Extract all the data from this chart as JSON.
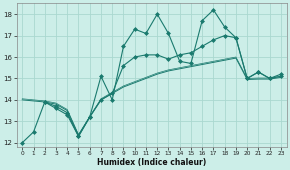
{
  "xlabel": "Humidex (Indice chaleur)",
  "bg_color": "#cceee8",
  "grid_color": "#aad8d0",
  "line_color": "#1a7a6e",
  "xlim": [
    -0.5,
    23.5
  ],
  "ylim": [
    11.8,
    18.5
  ],
  "yticks": [
    12,
    13,
    14,
    15,
    16,
    17,
    18
  ],
  "xticks": [
    0,
    1,
    2,
    3,
    4,
    5,
    6,
    7,
    8,
    9,
    10,
    11,
    12,
    13,
    14,
    15,
    16,
    17,
    18,
    19,
    20,
    21,
    22,
    23
  ],
  "series": [
    {
      "x": [
        0,
        1,
        2,
        3,
        4,
        5,
        6,
        7,
        8,
        9,
        10,
        11,
        12,
        13,
        14,
        15,
        16,
        17,
        18,
        19,
        20,
        21,
        22,
        23
      ],
      "y": [
        12.0,
        12.5,
        13.9,
        13.6,
        13.3,
        12.3,
        13.2,
        15.1,
        14.0,
        16.5,
        17.3,
        17.1,
        18.0,
        17.1,
        15.8,
        15.7,
        17.7,
        18.2,
        17.4,
        16.9,
        15.0,
        15.3,
        15.0,
        15.2
      ],
      "marker": "D",
      "markersize": 2.0,
      "linewidth": 0.8
    },
    {
      "x": [
        2,
        3,
        4,
        5,
        6,
        7,
        8,
        9,
        10,
        11,
        12,
        13,
        14,
        15,
        16,
        17,
        18,
        19,
        20,
        21,
        22,
        23
      ],
      "y": [
        13.9,
        13.7,
        13.4,
        12.3,
        13.2,
        14.0,
        14.3,
        15.6,
        16.0,
        16.1,
        16.1,
        15.9,
        16.1,
        16.2,
        16.5,
        16.8,
        17.0,
        16.9,
        15.0,
        15.3,
        15.0,
        15.1
      ],
      "marker": "D",
      "markersize": 2.0,
      "linewidth": 0.8
    },
    {
      "x": [
        0,
        2,
        3,
        4,
        5,
        6,
        7,
        8,
        9,
        10,
        11,
        12,
        13,
        14,
        15,
        16,
        17,
        18,
        19,
        20,
        21,
        22,
        23
      ],
      "y": [
        14.0,
        13.9,
        13.8,
        13.5,
        12.35,
        13.2,
        14.0,
        14.3,
        14.6,
        14.8,
        15.0,
        15.2,
        15.35,
        15.45,
        15.55,
        15.65,
        15.75,
        15.85,
        15.95,
        14.95,
        14.97,
        14.97,
        15.05
      ],
      "marker": null,
      "markersize": 0,
      "linewidth": 0.7
    },
    {
      "x": [
        0,
        2,
        3,
        4,
        5,
        6,
        7,
        8,
        9,
        10,
        11,
        12,
        13,
        14,
        15,
        16,
        17,
        18,
        19,
        20,
        21,
        22,
        23
      ],
      "y": [
        14.05,
        13.95,
        13.85,
        13.55,
        12.38,
        13.22,
        14.05,
        14.35,
        14.65,
        14.85,
        15.05,
        15.25,
        15.4,
        15.5,
        15.6,
        15.7,
        15.8,
        15.9,
        16.0,
        15.0,
        15.02,
        15.02,
        15.1
      ],
      "marker": null,
      "markersize": 0,
      "linewidth": 0.5
    }
  ]
}
